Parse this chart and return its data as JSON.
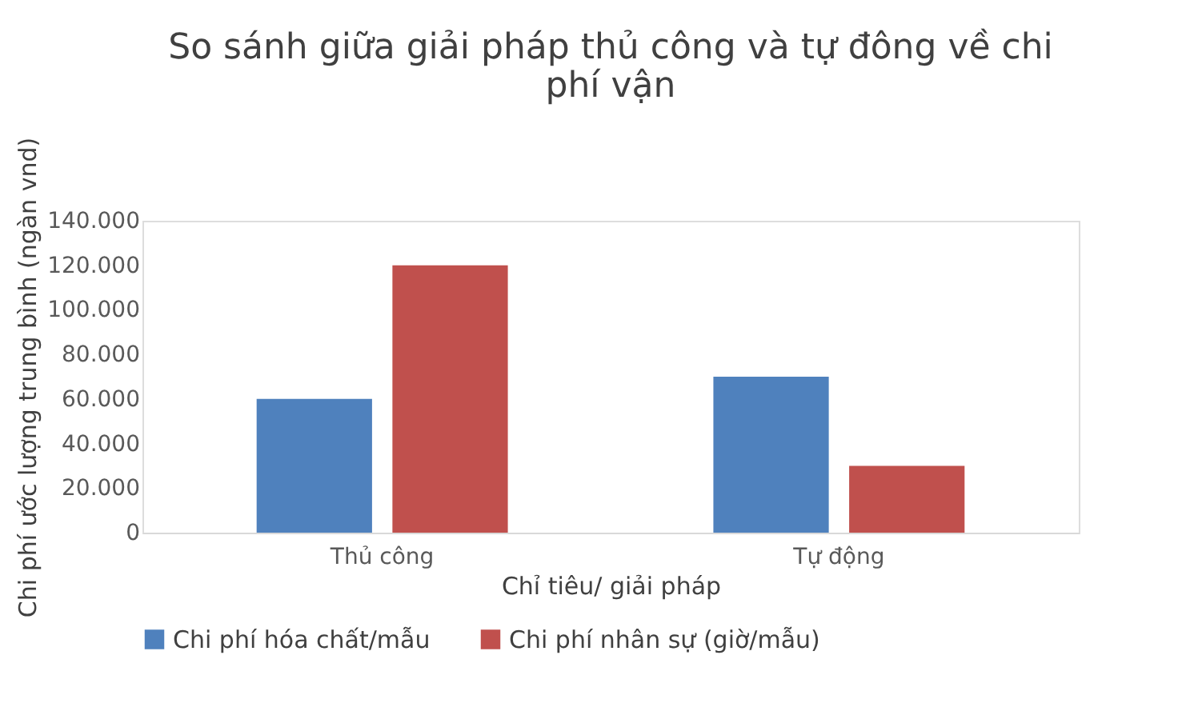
{
  "chart_data": {
    "type": "bar",
    "title": "So sánh giữa giải pháp thủ công và tự đông về chi phí vận",
    "xlabel": "Chỉ tiêu/ giải pháp",
    "ylabel": "Chi phí ước lượng trung bình (ngàn vnd)",
    "categories": [
      "Thủ công",
      "Tự động"
    ],
    "series": [
      {
        "name": "Chi phí hóa chất/mẫu",
        "color": "#4f81bd",
        "values": [
          60000,
          70000
        ]
      },
      {
        "name": "Chi phí nhân sự (giờ/mẫu)",
        "color": "#c0504d",
        "values": [
          120000,
          30000
        ]
      }
    ],
    "ylim": [
      0,
      140000
    ],
    "yticks": [
      0,
      {
        "value": 20000,
        "label": "20.000"
      },
      {
        "value": 40000,
        "label": "40.000"
      },
      {
        "value": 60000,
        "label": "60.000"
      },
      {
        "value": 80000,
        "label": "80.000"
      },
      {
        "value": 100000,
        "label": "100.000"
      },
      {
        "value": 120000,
        "label": "120.000"
      },
      {
        "value": 140000,
        "label": "140.000"
      }
    ],
    "grid": false,
    "legend": "bottom"
  }
}
